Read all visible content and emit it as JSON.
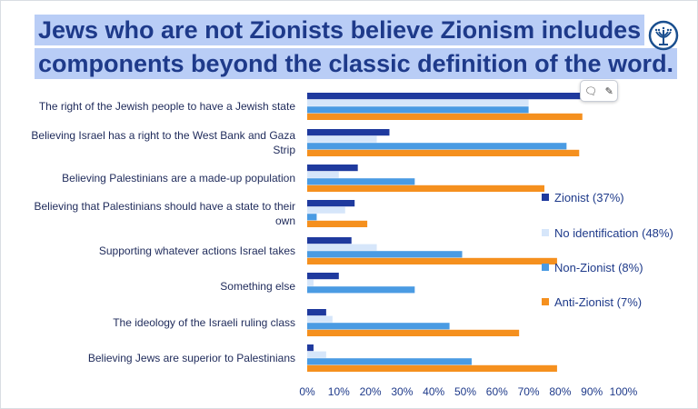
{
  "page": {
    "title_line_1": "Jews who are not Zionists believe Zionism includes",
    "title_line_2": "components beyond the classic definition of the word."
  },
  "colors": {
    "title": "#1e3a8a",
    "title_highlight": "#b9cdf6",
    "zionist": "#1f3a9e",
    "no_identification": "#d6e6fa",
    "non_zionist": "#4a9be3",
    "anti_zionist": "#f5901e"
  },
  "icons": {
    "logo": "menorah-circle-logo",
    "comment_tool": [
      "comment-icon",
      "edit-pen-icon"
    ]
  },
  "chart_data": {
    "type": "bar",
    "orientation": "horizontal",
    "categories": [
      [
        "The right of the Jewish people to have a Jewish state"
      ],
      [
        "Believing Israel has a right to the West Bank and Gaza",
        "Strip"
      ],
      [
        "Believing Palestinians are a made-up population"
      ],
      [
        "Believing that Palestinians should have a state to their",
        "own"
      ],
      [
        "Supporting whatever actions Israel takes"
      ],
      [
        "Something else"
      ],
      [
        "The ideology of the Israeli ruling class"
      ],
      [
        "Believing Jews are superior to Palestinians"
      ]
    ],
    "series": [
      {
        "name": "Zionist (37%)",
        "color": "#1f3a9e",
        "values": [
          98,
          26,
          16,
          15,
          14,
          10,
          6,
          2
        ]
      },
      {
        "name": "No identification (48%)",
        "color": "#d6e6fa",
        "values": [
          70,
          22,
          10,
          12,
          22,
          2,
          8,
          6
        ]
      },
      {
        "name": "Non-Zionist (8%)",
        "color": "#4a9be3",
        "values": [
          70,
          82,
          34,
          3,
          49,
          34,
          45,
          52
        ]
      },
      {
        "name": "Anti-Zionist (7%)",
        "color": "#f5901e",
        "values": [
          87,
          86,
          75,
          19,
          79,
          0,
          67,
          79
        ]
      }
    ],
    "xlim": [
      0,
      100
    ],
    "x_ticks": [
      "0%",
      "10%",
      "20%",
      "30%",
      "40%",
      "50%",
      "60%",
      "70%",
      "80%",
      "90%",
      "100%"
    ],
    "legend_position": "right",
    "grid": false
  }
}
